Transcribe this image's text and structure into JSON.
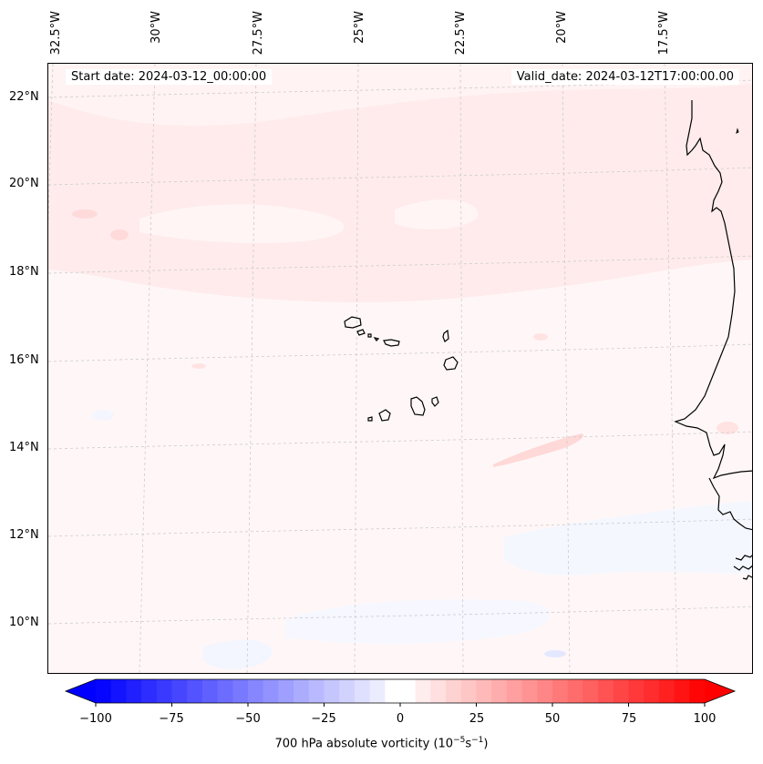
{
  "map": {
    "variable_label": "700 hPa absolute vorticity (10",
    "variable_unit_sup1": "−5",
    "variable_unit_mid": "s",
    "variable_unit_sup2": "−1",
    "variable_unit_end": ")",
    "start_date_label": "Start date: 2024-03-12_00:00:00",
    "valid_date_label": "Valid_date: 2024-03-12T17:00:00.00",
    "longitude_labels": [
      "32.5°W",
      "30°W",
      "27.5°W",
      "25°W",
      "22.5°W",
      "20°W",
      "17.5°W"
    ],
    "latitude_labels": [
      "22°N",
      "20°N",
      "18°N",
      "16°N",
      "14°N",
      "12°N",
      "10°N"
    ],
    "colorbar": {
      "ticks": [
        "−100",
        "−75",
        "−50",
        "−25",
        "0",
        "25",
        "50",
        "75",
        "100"
      ],
      "range": [
        -100,
        100
      ],
      "step": 5,
      "negative_color": "#0000ff",
      "positive_color": "#ff0000"
    },
    "colors": {
      "field_background": "#fff7f7",
      "field_light_pink": "#ffe9e9",
      "field_pink": "#ffdcdc",
      "field_light_blue": "#f4f6ff",
      "coastline": "#000000",
      "gridline": "#cccccc"
    }
  }
}
